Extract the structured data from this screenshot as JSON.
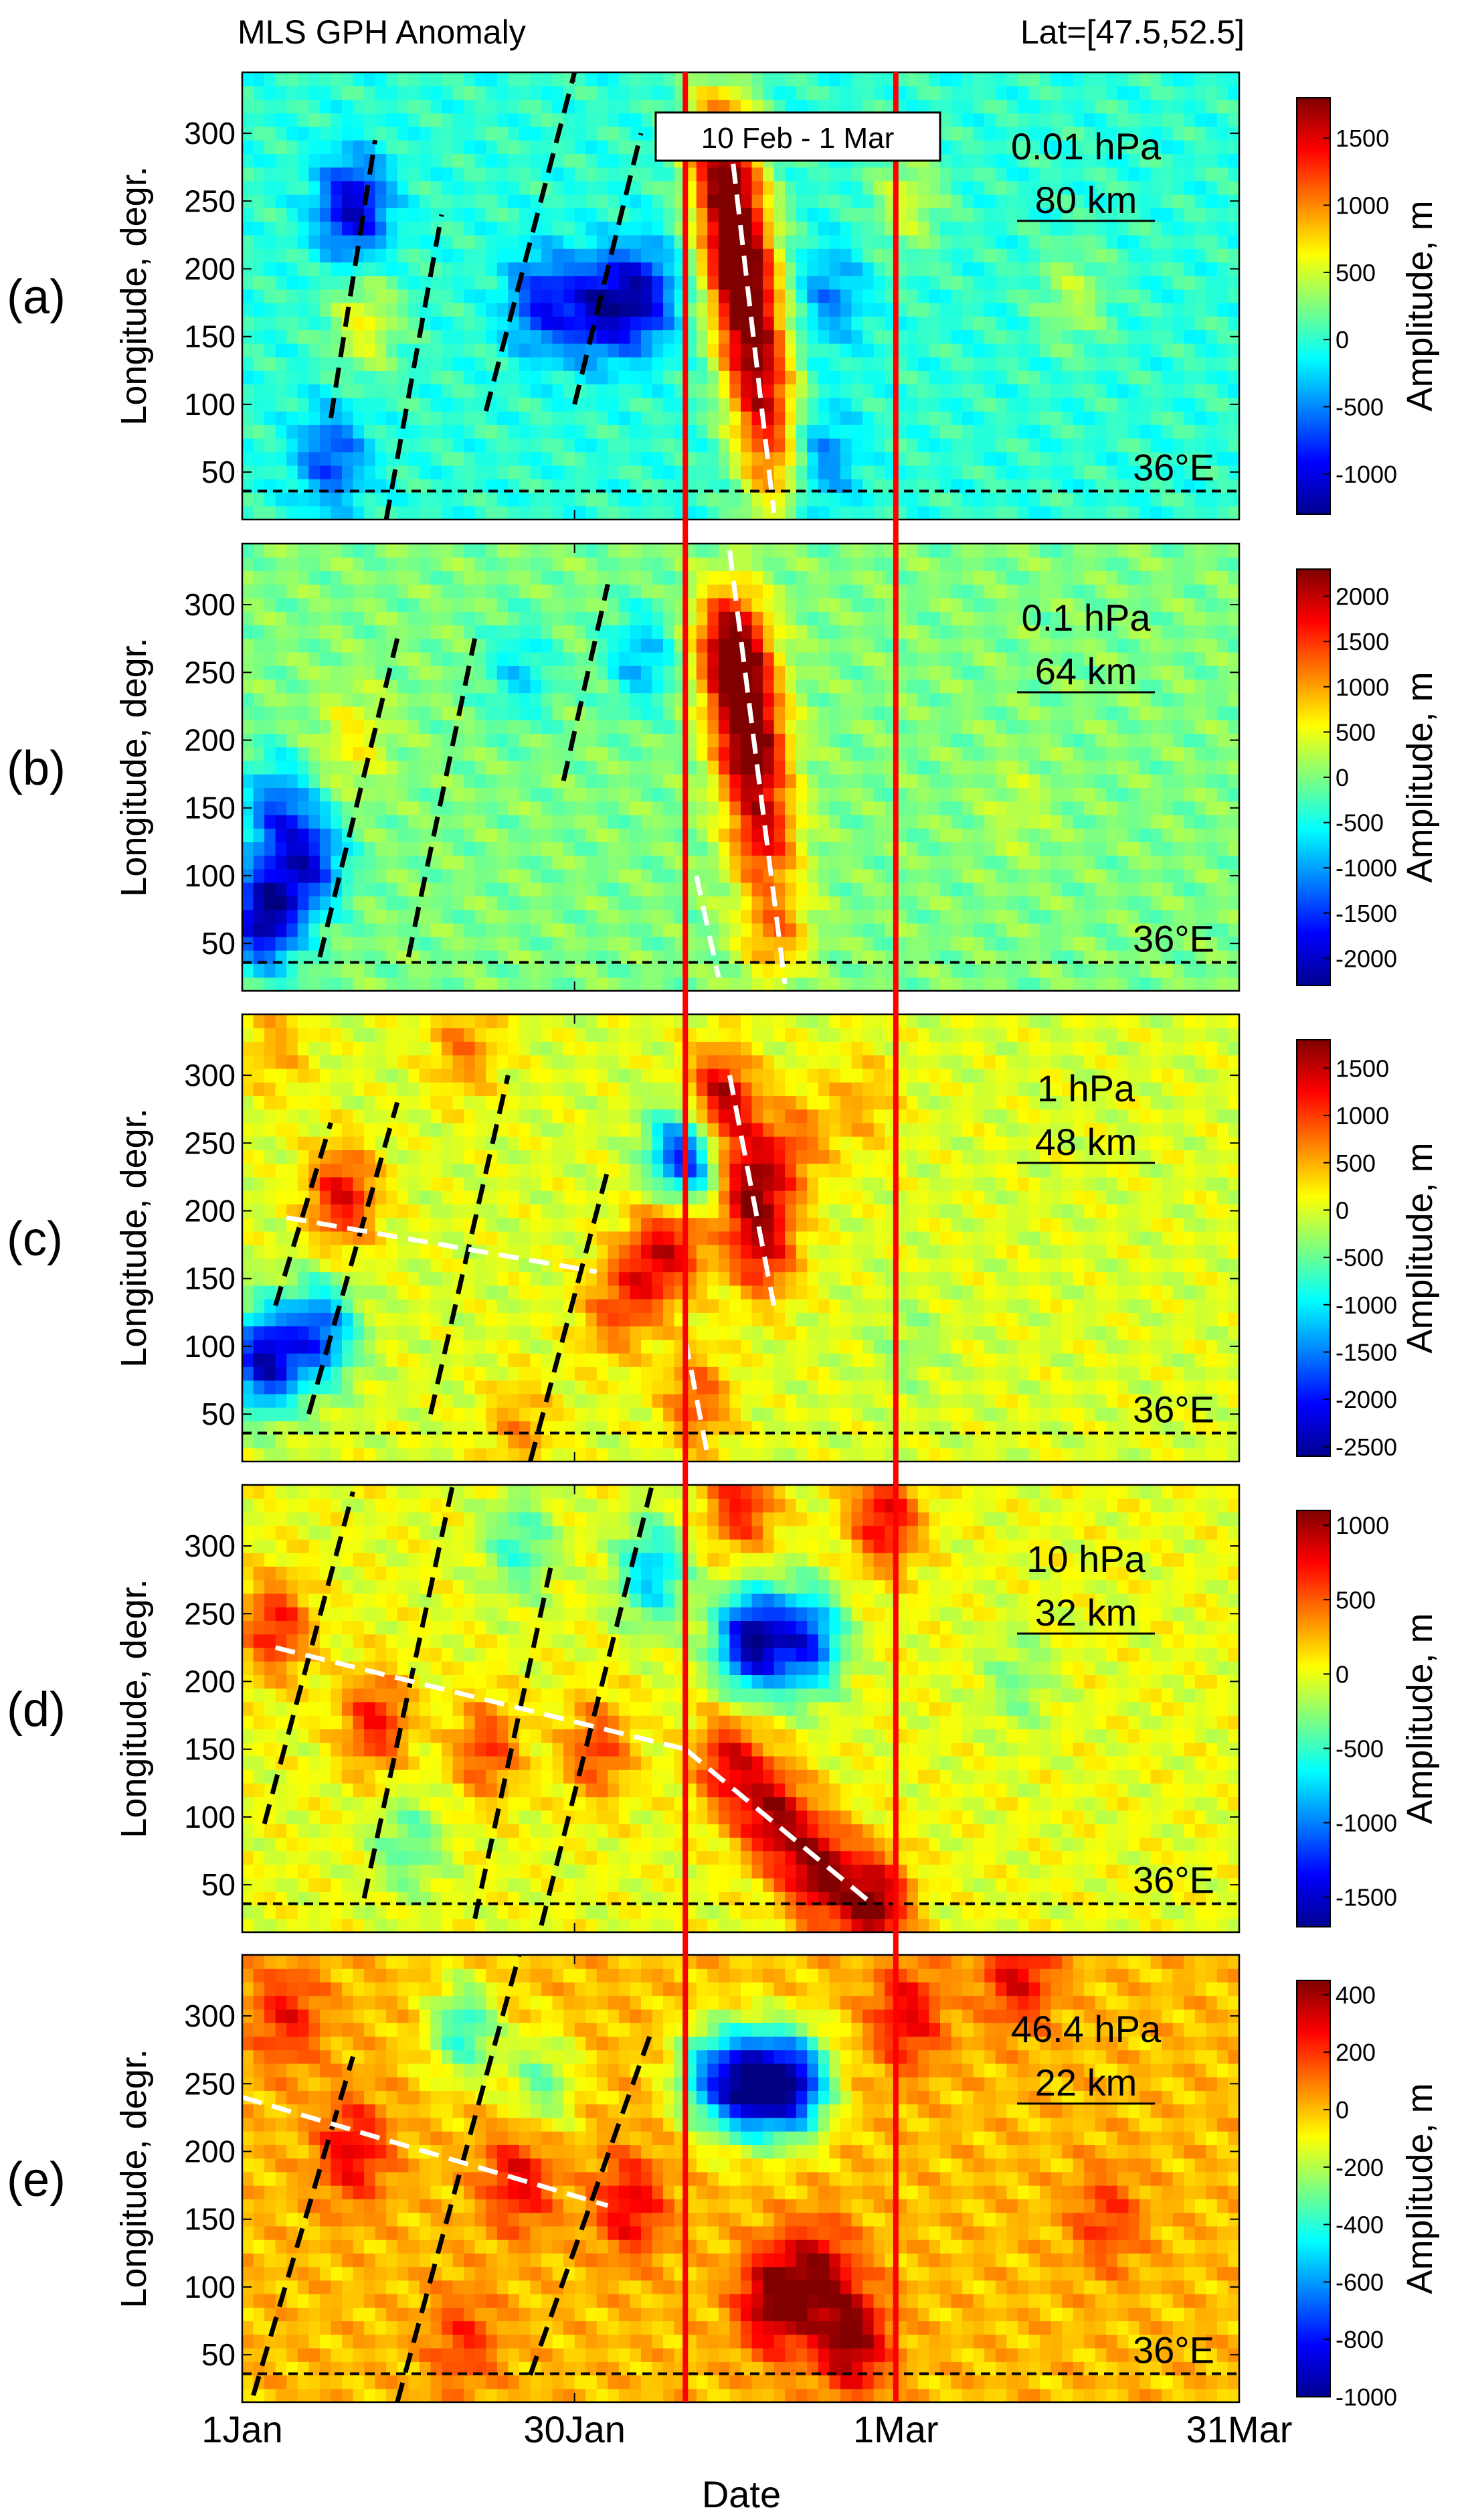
{
  "figure": {
    "title_left": "MLS GPH Anomaly",
    "title_right": "Lat=[47.5,52.5]",
    "x_label": "Date",
    "x_ticks": [
      "1Jan",
      "30Jan",
      "1Mar",
      "31Mar"
    ],
    "y_label": "Longitude, degr.",
    "y_ticks": [
      "50",
      "100",
      "150",
      "200",
      "250",
      "300"
    ],
    "cbar_label": "Amplitude, m",
    "ref_label": "36°E",
    "window_label": "10 Feb - 1 Mar"
  },
  "chart_data": [
    {
      "type": "heatmap",
      "panel": "(a)",
      "pressure": "0.01 hPa",
      "altitude": "80 km",
      "x_range_days": [
        0,
        90
      ],
      "ylim": [
        15,
        345
      ],
      "colorbar_ticks": [
        -1000,
        -500,
        0,
        500,
        1000,
        1500
      ],
      "colorbar_range": [
        -1300,
        1800
      ],
      "reference_longitude": 36,
      "window_days": [
        40,
        59
      ],
      "blobs": [
        {
          "day": 44,
          "lon": 250,
          "amp": 1600
        },
        {
          "day": 45,
          "lon": 200,
          "amp": 1750
        },
        {
          "day": 46,
          "lon": 150,
          "amp": 1500
        },
        {
          "day": 47,
          "lon": 100,
          "amp": 1200
        },
        {
          "day": 48,
          "lon": 50,
          "amp": 900
        },
        {
          "day": 43,
          "lon": 300,
          "amp": 1300
        },
        {
          "day": 36,
          "lon": 180,
          "amp": -1000
        },
        {
          "day": 32,
          "lon": 170,
          "amp": -900
        },
        {
          "day": 27,
          "lon": 175,
          "amp": -800
        },
        {
          "day": 10,
          "lon": 245,
          "amp": -1100
        },
        {
          "day": 8,
          "lon": 60,
          "amp": -700
        },
        {
          "day": 11,
          "lon": 160,
          "amp": 600
        },
        {
          "day": 60,
          "lon": 250,
          "amp": 500
        },
        {
          "day": 75,
          "lon": 180,
          "amp": 400
        },
        {
          "day": 53,
          "lon": 180,
          "amp": -500
        },
        {
          "day": 52,
          "lon": 60,
          "amp": -600
        }
      ],
      "dashed_lines_black": [
        {
          "d1": 8,
          "l1": 90,
          "d2": 12,
          "l2": 295
        },
        {
          "d1": 13,
          "l1": 15,
          "d2": 18,
          "l2": 240
        },
        {
          "d1": 22,
          "l1": 95,
          "d2": 30,
          "l2": 345
        },
        {
          "d1": 30,
          "l1": 100,
          "d2": 36,
          "l2": 300
        }
      ],
      "dashed_lines_white": [
        {
          "d1": 44,
          "l1": 300,
          "d2": 48,
          "l2": 20
        }
      ]
    },
    {
      "type": "heatmap",
      "panel": "(b)",
      "pressure": "0.1 hPa",
      "altitude": "64 km",
      "x_range_days": [
        0,
        90
      ],
      "ylim": [
        15,
        345
      ],
      "colorbar_ticks": [
        -2000,
        -1500,
        -1000,
        -500,
        0,
        500,
        1000,
        1500,
        2000
      ],
      "colorbar_range": [
        -2300,
        2300
      ],
      "reference_longitude": 36,
      "window_days": [
        40,
        59
      ],
      "blobs": [
        {
          "day": 44,
          "lon": 280,
          "amp": 1800
        },
        {
          "day": 45,
          "lon": 240,
          "amp": 2000
        },
        {
          "day": 46,
          "lon": 190,
          "amp": 2200
        },
        {
          "day": 47,
          "lon": 130,
          "amp": 1700
        },
        {
          "day": 48,
          "lon": 60,
          "amp": 1200
        },
        {
          "day": 2,
          "lon": 70,
          "amp": -2200
        },
        {
          "day": 6,
          "lon": 110,
          "amp": -1600
        },
        {
          "day": 3,
          "lon": 150,
          "amp": -1200
        },
        {
          "day": 10,
          "lon": 200,
          "amp": 600
        },
        {
          "day": 25,
          "lon": 250,
          "amp": -700
        },
        {
          "day": 36,
          "lon": 260,
          "amp": -900
        },
        {
          "day": 70,
          "lon": 150,
          "amp": 300
        }
      ],
      "dashed_lines_black": [
        {
          "d1": 7,
          "l1": 40,
          "d2": 14,
          "l2": 275
        },
        {
          "d1": 15,
          "l1": 40,
          "d2": 21,
          "l2": 275
        },
        {
          "d1": 29,
          "l1": 170,
          "d2": 33,
          "l2": 315
        }
      ],
      "dashed_lines_white": [
        {
          "d1": 44,
          "l1": 340,
          "d2": 49,
          "l2": 20
        },
        {
          "d1": 41,
          "l1": 100,
          "d2": 43,
          "l2": 25
        }
      ]
    },
    {
      "type": "heatmap",
      "panel": "(c)",
      "pressure": "1 hPa",
      "altitude": "48 km",
      "x_range_days": [
        0,
        90
      ],
      "ylim": [
        15,
        345
      ],
      "colorbar_ticks": [
        -2500,
        -2000,
        -1500,
        -1000,
        -500,
        0,
        500,
        1000,
        1500
      ],
      "colorbar_range": [
        -2600,
        1800
      ],
      "reference_longitude": 36,
      "window_days": [
        40,
        59
      ],
      "blobs": [
        {
          "day": 43,
          "lon": 280,
          "amp": 1700
        },
        {
          "day": 46,
          "lon": 220,
          "amp": 1500
        },
        {
          "day": 47,
          "lon": 170,
          "amp": 1200
        },
        {
          "day": 40,
          "lon": 240,
          "amp": -2200
        },
        {
          "day": 9,
          "lon": 210,
          "amp": 1300
        },
        {
          "day": 2,
          "lon": 90,
          "amp": -2300
        },
        {
          "day": 7,
          "lon": 110,
          "amp": -1700
        },
        {
          "day": 39,
          "lon": 180,
          "amp": 1200
        },
        {
          "day": 41,
          "lon": 60,
          "amp": 900
        },
        {
          "day": 36,
          "lon": 150,
          "amp": 900
        },
        {
          "day": 33,
          "lon": 120,
          "amp": 600
        },
        {
          "day": 20,
          "lon": 320,
          "amp": 700
        },
        {
          "day": 3,
          "lon": 320,
          "amp": 500
        },
        {
          "day": 50,
          "lon": 250,
          "amp": 700
        },
        {
          "day": 56,
          "lon": 280,
          "amp": 500
        },
        {
          "day": 25,
          "lon": 40,
          "amp": 600
        },
        {
          "day": 60,
          "lon": 100,
          "amp": -300
        }
      ],
      "dashed_lines_black": [
        {
          "d1": 3,
          "l1": 130,
          "d2": 8,
          "l2": 265
        },
        {
          "d1": 6,
          "l1": 50,
          "d2": 14,
          "l2": 280
        },
        {
          "d1": 17,
          "l1": 50,
          "d2": 24,
          "l2": 300
        },
        {
          "d1": 26,
          "l1": 15,
          "d2": 33,
          "l2": 230
        }
      ],
      "dashed_lines_white": [
        {
          "d1": 4,
          "l1": 195,
          "d2": 32,
          "l2": 155
        },
        {
          "d1": 44,
          "l1": 300,
          "d2": 48,
          "l2": 130
        },
        {
          "d1": 40,
          "l1": 105,
          "d2": 42,
          "l2": 20
        }
      ]
    },
    {
      "type": "heatmap",
      "panel": "(d)",
      "pressure": "10 hPa",
      "altitude": "32 km",
      "x_range_days": [
        0,
        90
      ],
      "ylim": [
        15,
        345
      ],
      "colorbar_ticks": [
        -1500,
        -1000,
        -500,
        0,
        500,
        1000
      ],
      "colorbar_range": [
        -1700,
        1100
      ],
      "reference_longitude": 36,
      "window_days": [
        40,
        59
      ],
      "blobs": [
        {
          "day": 57,
          "lon": 35,
          "amp": 1100
        },
        {
          "day": 52,
          "lon": 60,
          "amp": 1000
        },
        {
          "day": 48,
          "lon": 100,
          "amp": 900
        },
        {
          "day": 44,
          "lon": 140,
          "amp": 800
        },
        {
          "day": 3,
          "lon": 240,
          "amp": 700
        },
        {
          "day": 12,
          "lon": 170,
          "amp": 700
        },
        {
          "day": 22,
          "lon": 150,
          "amp": 600
        },
        {
          "day": 32,
          "lon": 150,
          "amp": 600
        },
        {
          "day": 46,
          "lon": 230,
          "amp": -1600
        },
        {
          "day": 51,
          "lon": 230,
          "amp": -1200
        },
        {
          "day": 37,
          "lon": 280,
          "amp": -800
        },
        {
          "day": 25,
          "lon": 300,
          "amp": -500
        },
        {
          "day": 45,
          "lon": 330,
          "amp": 700
        },
        {
          "day": 58,
          "lon": 320,
          "amp": 800
        },
        {
          "day": 15,
          "lon": 80,
          "amp": -400
        },
        {
          "day": 70,
          "lon": 200,
          "amp": -300
        }
      ],
      "dashed_lines_black": [
        {
          "d1": 2,
          "l1": 95,
          "d2": 10,
          "l2": 340
        },
        {
          "d1": 11,
          "l1": 40,
          "d2": 19,
          "l2": 345
        },
        {
          "d1": 21,
          "l1": 25,
          "d2": 28,
          "l2": 290
        },
        {
          "d1": 27,
          "l1": 20,
          "d2": 37,
          "l2": 345
        }
      ],
      "dashed_lines_white": [
        {
          "d1": 3,
          "l1": 225,
          "d2": 40,
          "l2": 150
        },
        {
          "d1": 40,
          "l1": 150,
          "d2": 57,
          "l2": 35
        }
      ]
    },
    {
      "type": "heatmap",
      "panel": "(e)",
      "pressure": "46.4 hPa",
      "altitude": "22 km",
      "x_range_days": [
        0,
        90
      ],
      "ylim": [
        15,
        345
      ],
      "colorbar_ticks": [
        -1000,
        -800,
        -600,
        -400,
        -200,
        0,
        200,
        400
      ],
      "colorbar_range": [
        -1000,
        450
      ],
      "reference_longitude": 36,
      "window_days": [
        40,
        59
      ],
      "blobs": [
        {
          "day": 48,
          "lon": 90,
          "amp": 450
        },
        {
          "day": 55,
          "lon": 60,
          "amp": 450
        },
        {
          "day": 52,
          "lon": 110,
          "amp": 350
        },
        {
          "day": 46,
          "lon": 250,
          "amp": -900
        },
        {
          "day": 50,
          "lon": 250,
          "amp": -800
        },
        {
          "day": 42,
          "lon": 255,
          "amp": -500
        },
        {
          "day": 27,
          "lon": 250,
          "amp": -300
        },
        {
          "day": 20,
          "lon": 290,
          "amp": -400
        },
        {
          "day": 10,
          "lon": 200,
          "amp": 300
        },
        {
          "day": 25,
          "lon": 180,
          "amp": 300
        },
        {
          "day": 35,
          "lon": 160,
          "amp": 300
        },
        {
          "day": 4,
          "lon": 300,
          "amp": 250
        },
        {
          "day": 60,
          "lon": 300,
          "amp": 300
        },
        {
          "day": 70,
          "lon": 330,
          "amp": 300
        },
        {
          "day": 78,
          "lon": 150,
          "amp": 200
        },
        {
          "day": 20,
          "lon": 60,
          "amp": 200
        }
      ],
      "dashed_lines_black": [
        {
          "d1": 1,
          "l1": 20,
          "d2": 10,
          "l2": 270
        },
        {
          "d1": 14,
          "l1": 15,
          "d2": 25,
          "l2": 345
        },
        {
          "d1": 26,
          "l1": 35,
          "d2": 37,
          "l2": 290
        }
      ],
      "dashed_lines_white": [
        {
          "d1": 0,
          "l1": 240,
          "d2": 33,
          "l2": 160
        }
      ]
    }
  ]
}
